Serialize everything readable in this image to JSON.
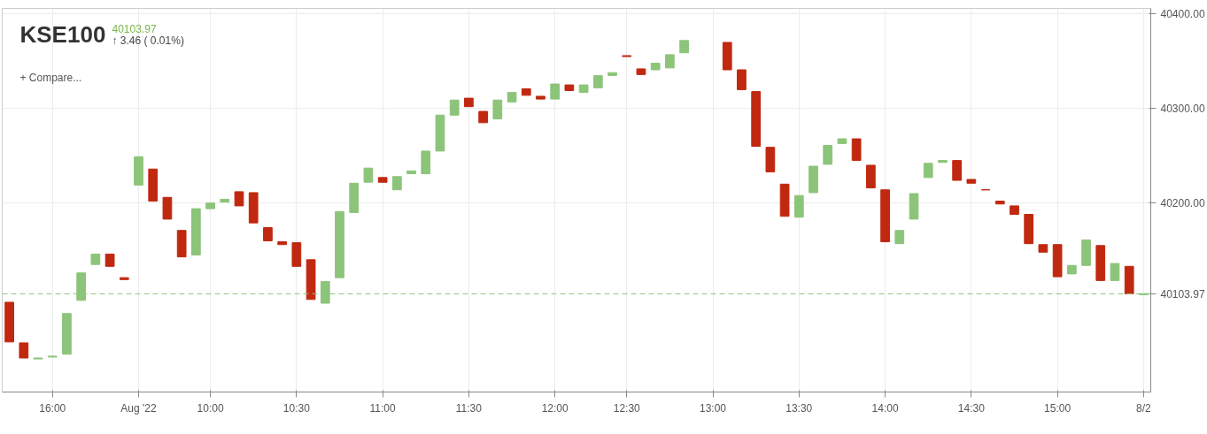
{
  "chart_data": {
    "type": "candlestick",
    "title": "KSE100",
    "subtitle": "40103.97",
    "annotations": [
      "↑ 3.46 ( 0.01%)",
      "+ Compare..."
    ],
    "categories": [
      null,
      null,
      null,
      "16:00",
      null,
      null,
      null,
      null,
      null,
      "Aug '22",
      null,
      null,
      null,
      null,
      "10:00",
      null,
      null,
      null,
      null,
      null,
      "10:30",
      null,
      null,
      null,
      null,
      null,
      "11:00",
      null,
      null,
      null,
      null,
      null,
      "11:30",
      null,
      null,
      null,
      null,
      null,
      "12:00",
      null,
      null,
      null,
      null,
      "12:30",
      null,
      null,
      null,
      null,
      null,
      "13:00",
      null,
      null,
      null,
      null,
      null,
      "13:30",
      null,
      null,
      null,
      null,
      null,
      "14:00",
      null,
      null,
      null,
      null,
      null,
      "14:30",
      null,
      null,
      null,
      null,
      null,
      "15:00",
      null,
      null,
      null,
      null,
      null,
      "8/2"
    ],
    "ohlc": [
      [
        40095,
        40095,
        40053,
        40053
      ],
      [
        40052,
        40052,
        40036,
        40036
      ],
      [
        40035,
        40036,
        40035,
        40036
      ],
      [
        40037,
        40038,
        40037,
        40038
      ],
      [
        40040,
        40083,
        40040,
        40083
      ],
      [
        40097,
        40126,
        40097,
        40126
      ],
      [
        40135,
        40146,
        40135,
        40146
      ],
      [
        40146,
        40146,
        40133,
        40133
      ],
      [
        40121,
        40121,
        40119,
        40119
      ],
      [
        40219,
        40249,
        40219,
        40249
      ],
      [
        40236,
        40236,
        40202,
        40202
      ],
      [
        40206,
        40206,
        40183,
        40183
      ],
      [
        40171,
        40171,
        40143,
        40143
      ],
      [
        40145,
        40194,
        40145,
        40194
      ],
      [
        40194,
        40200,
        40194,
        40200
      ],
      [
        40201,
        40204,
        40201,
        40204
      ],
      [
        40212,
        40212,
        40197,
        40197
      ],
      [
        40211,
        40211,
        40179,
        40179
      ],
      [
        40174,
        40174,
        40160,
        40160
      ],
      [
        40159,
        40159,
        40156,
        40156
      ],
      [
        40158,
        40158,
        40133,
        40133
      ],
      [
        40140,
        40140,
        40098,
        40098
      ],
      [
        40094,
        40117,
        40094,
        40117
      ],
      [
        40121,
        40191,
        40121,
        40191
      ],
      [
        40190,
        40221,
        40190,
        40221
      ],
      [
        40222,
        40237,
        40222,
        40237
      ],
      [
        40227,
        40227,
        40222,
        40222
      ],
      [
        40214,
        40228,
        40214,
        40228
      ],
      [
        40231,
        40234,
        40231,
        40234
      ],
      [
        40231,
        40255,
        40231,
        40255
      ],
      [
        40255,
        40293,
        40255,
        40293
      ],
      [
        40293,
        40309,
        40293,
        40309
      ],
      [
        40311,
        40311,
        40302,
        40302
      ],
      [
        40297,
        40297,
        40285,
        40285
      ],
      [
        40289,
        40309,
        40289,
        40309
      ],
      [
        40307,
        40317,
        40307,
        40317
      ],
      [
        40321,
        40321,
        40314,
        40314
      ],
      [
        40313,
        40313,
        40310,
        40310
      ],
      [
        40310,
        40326,
        40310,
        40326
      ],
      [
        40325,
        40325,
        40319,
        40319
      ],
      [
        40317,
        40325,
        40317,
        40325
      ],
      [
        40322,
        40335,
        40322,
        40335
      ],
      [
        40335,
        40338,
        40335,
        40338
      ],
      [
        40356,
        40356,
        40355,
        40355
      ],
      [
        40342,
        40342,
        40336,
        40336
      ],
      [
        40341,
        40348,
        40341,
        40348
      ],
      [
        40343,
        40357,
        40343,
        40357
      ],
      [
        40359,
        40372,
        40359,
        40372
      ],
      null,
      null,
      [
        40370,
        40370,
        40341,
        40341
      ],
      [
        40341,
        40341,
        40320,
        40320
      ],
      [
        40318,
        40318,
        40260,
        40260
      ],
      [
        40259,
        40259,
        40233,
        40233
      ],
      [
        40220,
        40220,
        40186,
        40186
      ],
      [
        40185,
        40208,
        40185,
        40208
      ],
      [
        40211,
        40239,
        40211,
        40239
      ],
      [
        40241,
        40261,
        40241,
        40261
      ],
      [
        40263,
        40268,
        40263,
        40268
      ],
      [
        40268,
        40268,
        40245,
        40245
      ],
      [
        40240,
        40240,
        40216,
        40216
      ],
      [
        40214,
        40214,
        40159,
        40159
      ],
      [
        40157,
        40171,
        40157,
        40171
      ],
      [
        40183,
        40210,
        40183,
        40210
      ],
      [
        40227,
        40242,
        40227,
        40242
      ],
      [
        40243,
        40245,
        40243,
        40245
      ],
      [
        40245,
        40245,
        40224,
        40224
      ],
      [
        40225,
        40225,
        40221,
        40221
      ],
      [
        40214,
        40214,
        40214,
        40214
      ],
      [
        40202,
        40202,
        40199,
        40199
      ],
      [
        40197,
        40197,
        40188,
        40188
      ],
      [
        40188,
        40188,
        40157,
        40157
      ],
      [
        40156,
        40156,
        40148,
        40148
      ],
      [
        40156,
        40156,
        40122,
        40122
      ],
      [
        40125,
        40134,
        40125,
        40134
      ],
      [
        40134,
        40161,
        40134,
        40161
      ],
      [
        40155,
        40155,
        40118,
        40118
      ],
      [
        40118,
        40136,
        40118,
        40136
      ],
      [
        40133,
        40133,
        40104,
        40104
      ],
      [
        40103,
        40104,
        40103,
        40104
      ]
    ],
    "colors": [
      "#c0280f",
      "#c0280f",
      "#8cc47a",
      "#8cc47a",
      "#8cc47a",
      "#8cc47a",
      "#8cc47a",
      "#c0280f",
      "#c0280f",
      "#8cc47a",
      "#c0280f",
      "#c0280f",
      "#c0280f",
      "#8cc47a",
      "#8cc47a",
      "#8cc47a",
      "#c0280f",
      "#c0280f",
      "#c0280f",
      "#c0280f",
      "#c0280f",
      "#c0280f",
      "#8cc47a",
      "#8cc47a",
      "#8cc47a",
      "#8cc47a",
      "#c0280f",
      "#8cc47a",
      "#8cc47a",
      "#8cc47a",
      "#8cc47a",
      "#8cc47a",
      "#c0280f",
      "#c0280f",
      "#8cc47a",
      "#8cc47a",
      "#c0280f",
      "#c0280f",
      "#8cc47a",
      "#c0280f",
      "#8cc47a",
      "#8cc47a",
      "#8cc47a",
      "#c0280f",
      "#c0280f",
      "#8cc47a",
      "#8cc47a",
      "#8cc47a",
      null,
      null,
      "#c0280f",
      "#c0280f",
      "#c0280f",
      "#c0280f",
      "#c0280f",
      "#8cc47a",
      "#8cc47a",
      "#8cc47a",
      "#8cc47a",
      "#c0280f",
      "#c0280f",
      "#c0280f",
      "#8cc47a",
      "#8cc47a",
      "#8cc47a",
      "#8cc47a",
      "#c0280f",
      "#c0280f",
      "#c0280f",
      "#c0280f",
      "#c0280f",
      "#c0280f",
      "#c0280f",
      "#c0280f",
      "#8cc47a",
      "#8cc47a",
      "#c0280f",
      "#8cc47a",
      "#c0280f",
      "#8cc47a"
    ],
    "ylim": [
      40000,
      40406
    ],
    "yticks": [
      {
        "value": 40200,
        "label": "40200.00"
      },
      {
        "value": 40300,
        "label": "40300.00"
      },
      {
        "value": 40400,
        "label": "40400.00"
      }
    ],
    "ref_lines": [
      {
        "axis": "y",
        "value": 40103.97,
        "label": "40103.97",
        "color": "#8cc47a",
        "line_style": "dashed"
      }
    ],
    "grid": true
  }
}
